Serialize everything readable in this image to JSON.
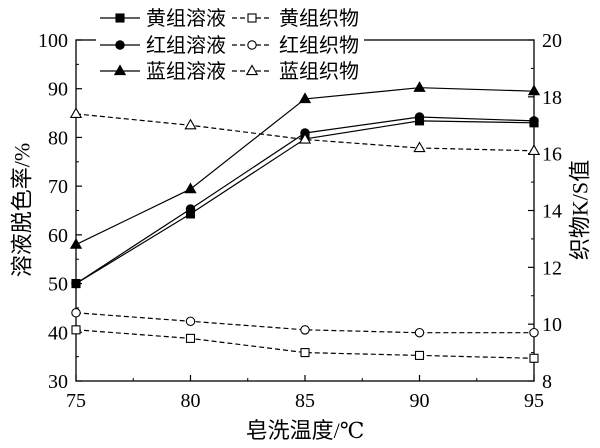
{
  "chart_data": {
    "type": "line",
    "xlabel": "皂洗温度/℃",
    "ylabel": "溶液脱色率/%",
    "y2label": "织物K/S值",
    "x": [
      75,
      80,
      85,
      90,
      95
    ],
    "xlim": [
      75,
      95
    ],
    "ylim": [
      30,
      100
    ],
    "y2lim": [
      8,
      20
    ],
    "x_ticks": [
      75,
      80,
      85,
      90,
      95
    ],
    "y_ticks": [
      30,
      40,
      50,
      60,
      70,
      80,
      90,
      100
    ],
    "y2_ticks": [
      8,
      10,
      12,
      14,
      16,
      18,
      20
    ],
    "grid": false,
    "legend": "top-left",
    "series": [
      {
        "name": "黄组溶液",
        "axis": "left",
        "color": "#000000",
        "marker": "square",
        "filled": true,
        "line_style": "solid",
        "values": [
          50.0,
          64.3,
          79.7,
          83.4,
          83.0
        ]
      },
      {
        "name": "红组溶液",
        "axis": "left",
        "color": "#000000",
        "marker": "circle",
        "filled": true,
        "line_style": "solid",
        "values": [
          50.0,
          65.3,
          80.9,
          84.2,
          83.4
        ]
      },
      {
        "name": "蓝组溶液",
        "axis": "left",
        "color": "#000000",
        "marker": "triangle",
        "filled": true,
        "line_style": "solid",
        "values": [
          58.0,
          69.4,
          87.9,
          90.2,
          89.5
        ]
      },
      {
        "name": "黄组织物",
        "axis": "right",
        "color": "#000000",
        "marker": "square",
        "filled": false,
        "line_style": "dashed",
        "values": [
          9.8,
          9.5,
          9.0,
          8.9,
          8.8
        ]
      },
      {
        "name": "红组织物",
        "axis": "right",
        "color": "#000000",
        "marker": "circle",
        "filled": false,
        "line_style": "dashed",
        "values": [
          10.4,
          10.1,
          9.8,
          9.7,
          9.7
        ]
      },
      {
        "name": "蓝组织物",
        "axis": "right",
        "color": "#000000",
        "marker": "triangle",
        "filled": false,
        "line_style": "dashed",
        "values": [
          17.4,
          17.0,
          16.5,
          16.2,
          16.1
        ]
      }
    ]
  }
}
